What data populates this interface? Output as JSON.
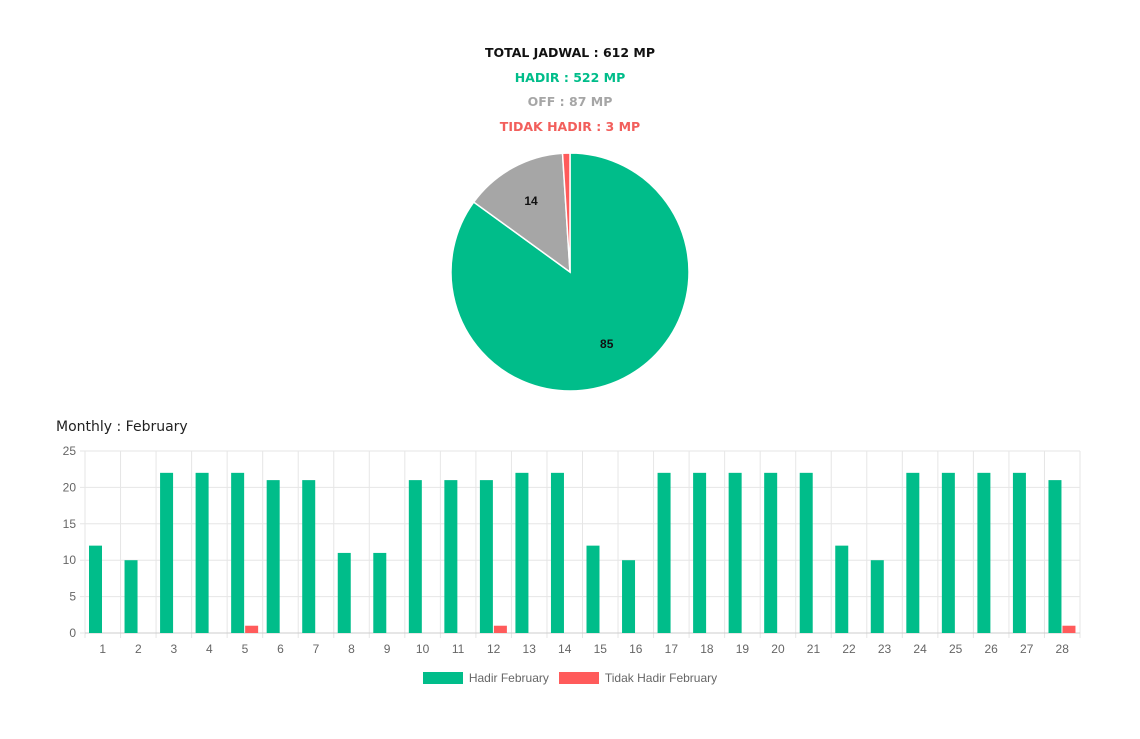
{
  "summary": {
    "total": "TOTAL JADWAL : 612 MP",
    "hadir": "HADIR : 522 MP",
    "off": "OFF : 87 MP",
    "tidak_hadir": "TIDAK HADIR : 3 MP"
  },
  "colors": {
    "hadir": "#00bd8a",
    "off": "#a6a6a6",
    "tidak_hadir": "#ff5b5b",
    "grid": "#e6e6e6",
    "tick": "#666666"
  },
  "monthly_title": "Monthly : February",
  "chart_data": [
    {
      "type": "pie",
      "slices": [
        {
          "category": "hadir",
          "value": 85,
          "label": "85"
        },
        {
          "category": "off",
          "value": 14,
          "label": "14"
        },
        {
          "category": "tidak_hadir",
          "value": 1,
          "label": ""
        }
      ]
    },
    {
      "type": "bar",
      "title": "Monthly : February",
      "categories": [
        "1",
        "2",
        "3",
        "4",
        "5",
        "6",
        "7",
        "8",
        "9",
        "10",
        "11",
        "12",
        "13",
        "14",
        "15",
        "16",
        "17",
        "18",
        "19",
        "20",
        "21",
        "22",
        "23",
        "24",
        "25",
        "26",
        "27",
        "28"
      ],
      "series": [
        {
          "name": "Hadir February",
          "values": [
            12,
            10,
            22,
            22,
            22,
            21,
            21,
            11,
            11,
            21,
            21,
            21,
            22,
            22,
            12,
            10,
            22,
            22,
            22,
            22,
            22,
            12,
            10,
            22,
            22,
            22,
            22,
            21
          ]
        },
        {
          "name": "Tidak Hadir February",
          "values": [
            0,
            0,
            0,
            0,
            1,
            0,
            0,
            0,
            0,
            0,
            0,
            1,
            0,
            0,
            0,
            0,
            0,
            0,
            0,
            0,
            0,
            0,
            0,
            0,
            0,
            0,
            0,
            1
          ]
        }
      ],
      "ylim": [
        0,
        25
      ],
      "yticks": [
        0,
        5,
        10,
        15,
        20,
        25
      ],
      "grid": true,
      "legend": "bottom"
    }
  ]
}
